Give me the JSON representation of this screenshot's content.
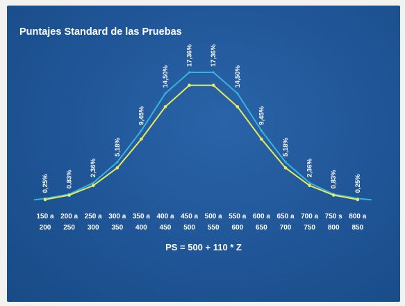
{
  "title": "Puntajes Standard de las Pruebas",
  "formula": "PS = 500 + 110 * Z",
  "colors": {
    "background": "#1f5596",
    "line_upper": "#36b3e0",
    "line_lower": "#e8ec5a",
    "text": "#ffffff"
  },
  "chart_data": {
    "type": "line",
    "title": "Puntajes Standard de las Pruebas",
    "categories": [
      [
        "150 a",
        "200"
      ],
      [
        "200 a",
        "250"
      ],
      [
        "250 a",
        "300"
      ],
      [
        "300 a",
        "350"
      ],
      [
        "350 a",
        "400"
      ],
      [
        "400 a",
        "450"
      ],
      [
        "450 a",
        "500"
      ],
      [
        "500 a",
        "550"
      ],
      [
        "550 a",
        "600"
      ],
      [
        "600 a",
        "650"
      ],
      [
        "650 a",
        "700"
      ],
      [
        "700 a",
        "750"
      ],
      [
        "750 s",
        "800"
      ],
      [
        "800 a",
        "850"
      ]
    ],
    "labels": [
      "0,25%",
      "0,83%",
      "2,36%",
      "5,18%",
      "9,45%",
      "14,50%",
      "17,36%",
      "17,36%",
      "14,50%",
      "9,45%",
      "5,18%",
      "2,36%",
      "0,83%",
      "0,25%"
    ],
    "series": [
      {
        "values": [
          0.25,
          0.83,
          2.36,
          5.18,
          9.45,
          14.5,
          17.36,
          17.36,
          14.5,
          9.45,
          5.18,
          2.36,
          0.83,
          0.25
        ],
        "color": "#36b3e0",
        "markers": false
      },
      {
        "values": [
          0.1,
          0.7,
          2.0,
          4.4,
          8.3,
          12.7,
          15.6,
          15.6,
          12.7,
          8.3,
          4.4,
          2.0,
          0.7,
          0.1
        ],
        "color": "#e8ec5a",
        "markers": true
      }
    ],
    "grid": false
  }
}
